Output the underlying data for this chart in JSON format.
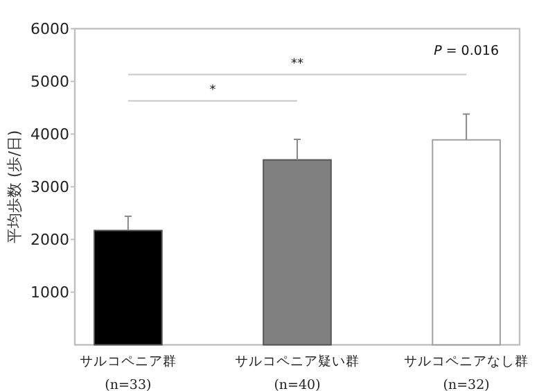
{
  "chart_data": {
    "type": "bar",
    "ylabel": "平均歩数 (歩/日)",
    "categories": [
      "サルコペニア群\n(n=33)",
      "サルコペニア疑い群\n(n=40)",
      "サルコペニアなし群\n(n=32)"
    ],
    "values": [
      2170,
      3510,
      3890
    ],
    "colors": [
      "#000000",
      "#808080",
      "#ffffff"
    ],
    "errors": [
      270,
      390,
      490
    ],
    "ylim": [
      0,
      6000
    ],
    "yticks": [
      1000,
      2000,
      3000,
      4000,
      5000,
      6000
    ],
    "grid": false,
    "annotations": [
      "*",
      "**",
      "P = 0.016"
    ]
  }
}
